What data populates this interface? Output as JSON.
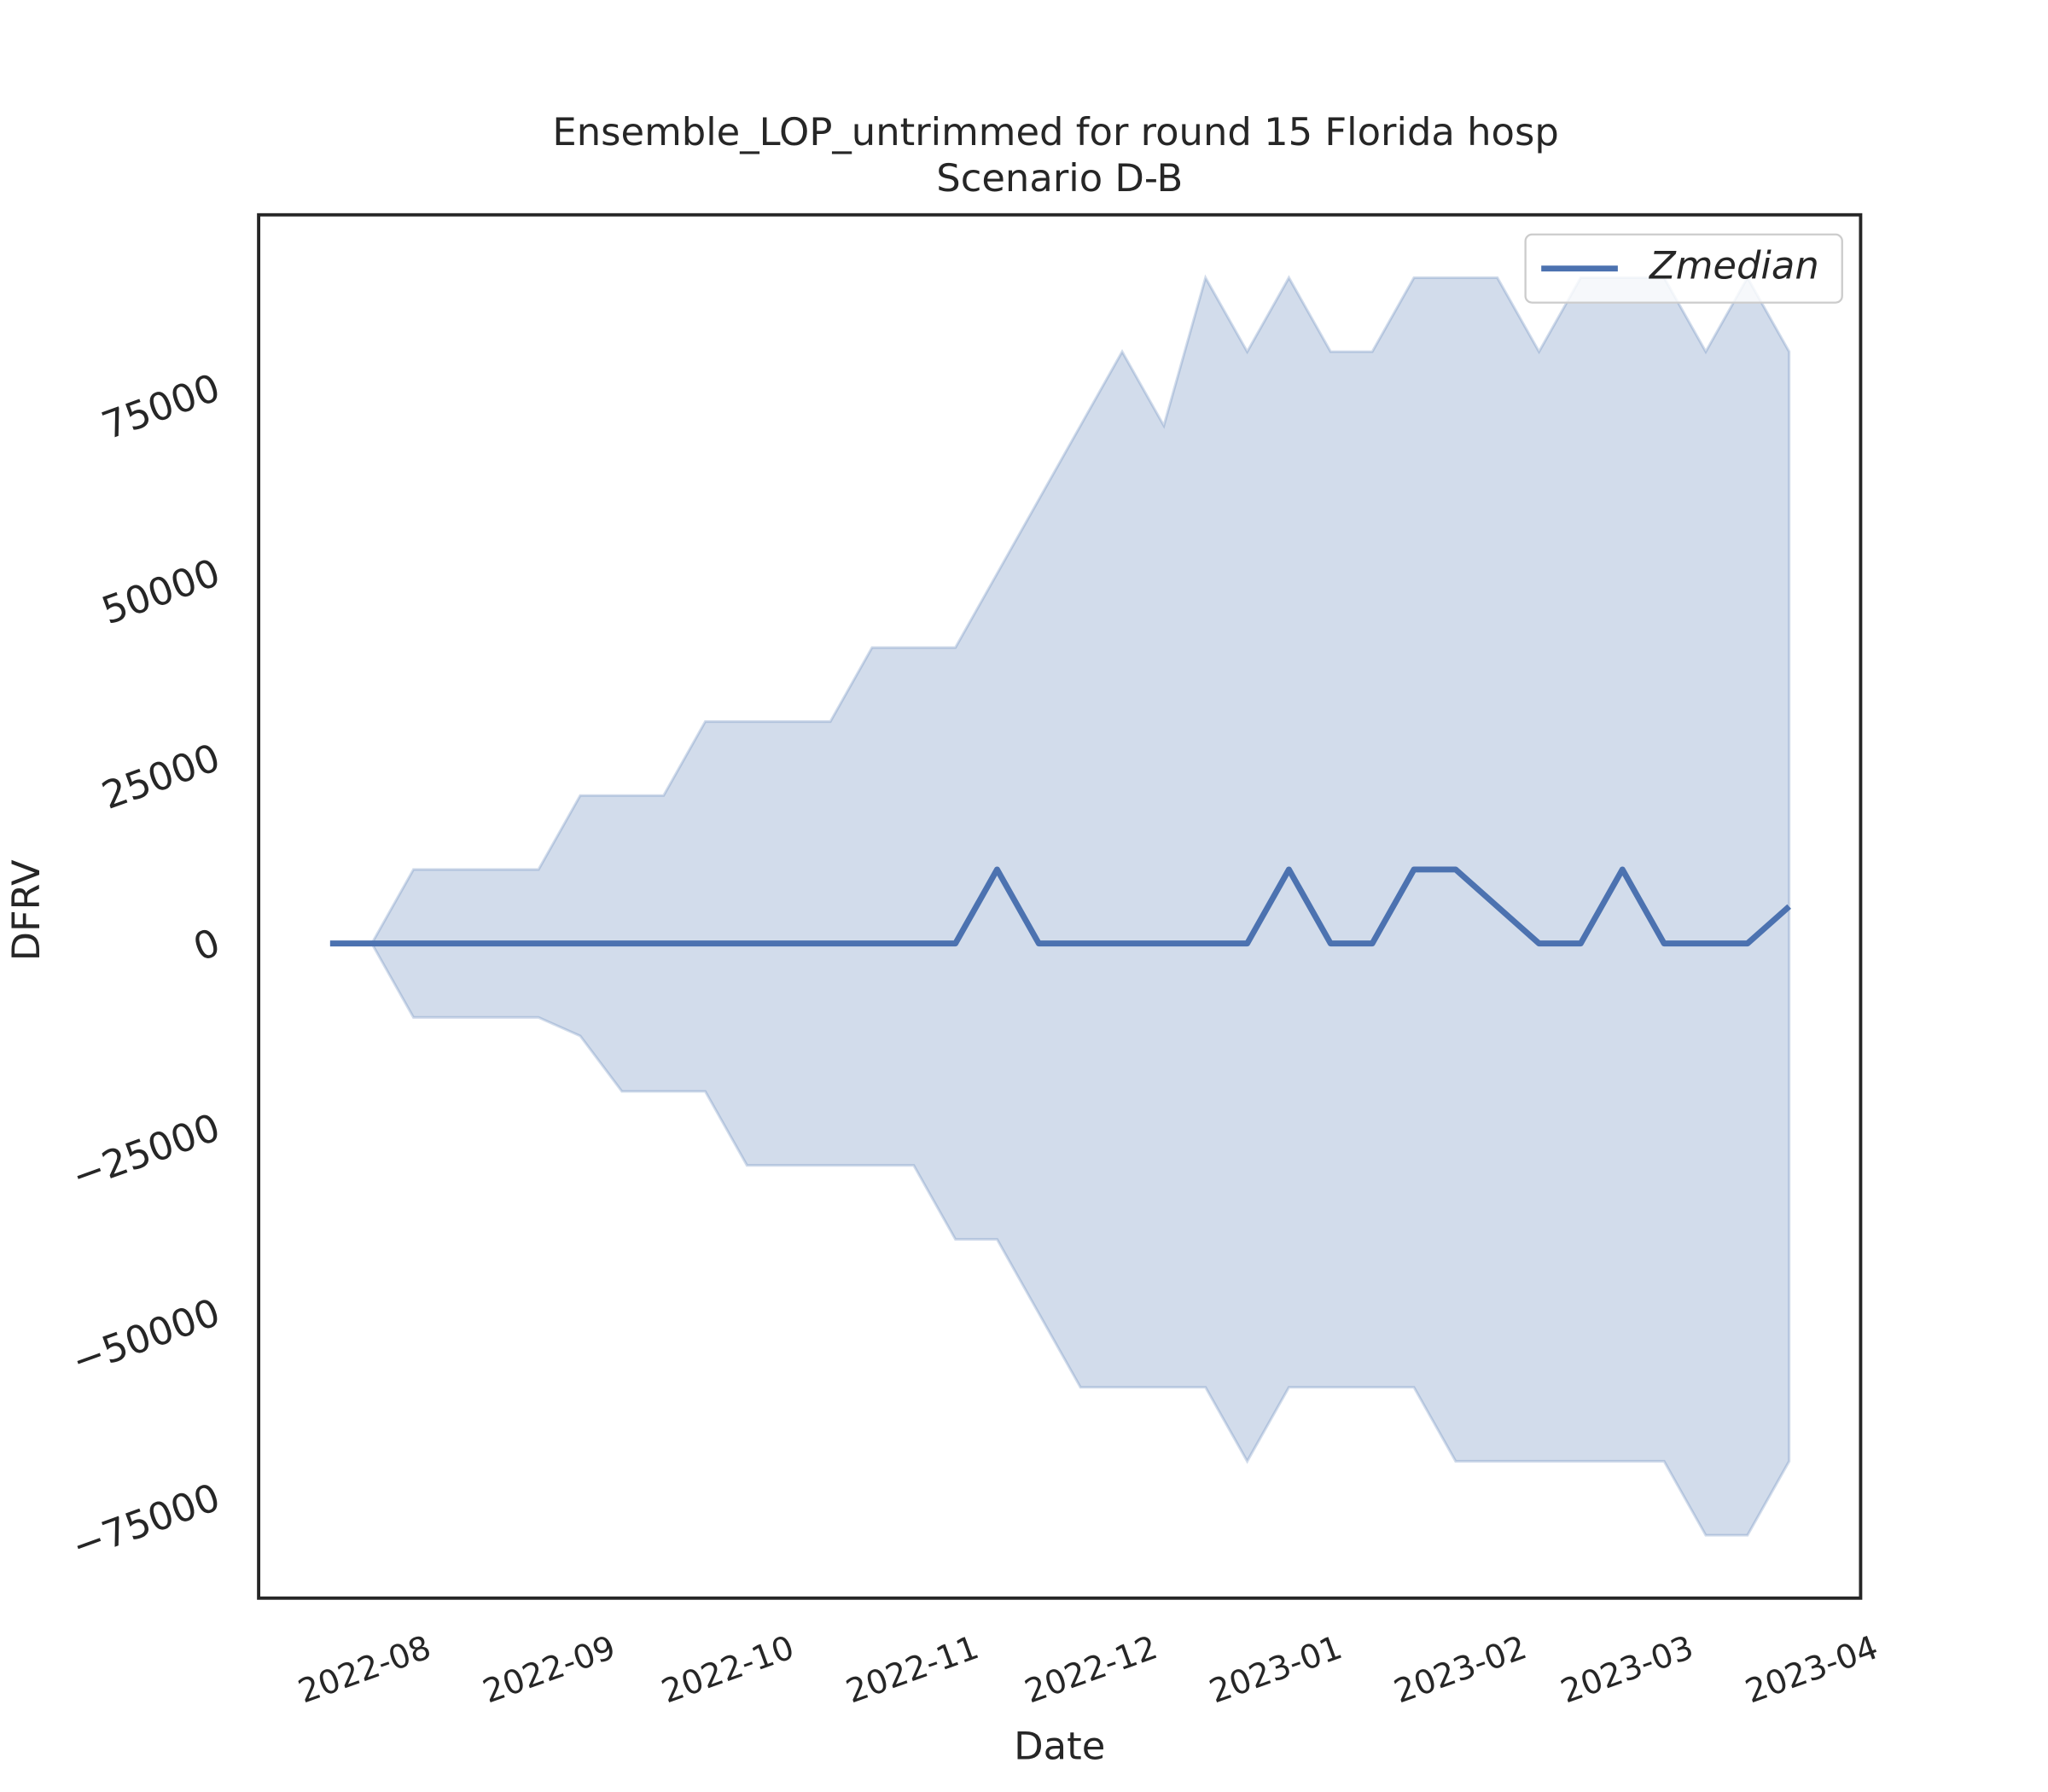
{
  "chart_data": {
    "type": "line",
    "title": "Ensemble_LOP_untrimmed for round 15 Florida hosp",
    "subtitle": "Scenario D-B",
    "x_label": "Date",
    "y_label": "DFRV",
    "x": [
      "2022-07-23",
      "2022-07-30",
      "2022-08-06",
      "2022-08-13",
      "2022-08-20",
      "2022-08-27",
      "2022-09-03",
      "2022-09-10",
      "2022-09-17",
      "2022-09-24",
      "2022-10-01",
      "2022-10-08",
      "2022-10-15",
      "2022-10-22",
      "2022-10-29",
      "2022-11-05",
      "2022-11-12",
      "2022-11-19",
      "2022-11-26",
      "2022-12-03",
      "2022-12-10",
      "2022-12-17",
      "2022-12-24",
      "2022-12-31",
      "2023-01-07",
      "2023-01-14",
      "2023-01-21",
      "2023-01-28",
      "2023-02-04",
      "2023-02-11",
      "2023-02-18",
      "2023-02-25",
      "2023-03-04",
      "2023-03-11",
      "2023-03-18",
      "2023-03-25"
    ],
    "series": [
      {
        "name": "Zmedian",
        "color": "#4c72b0",
        "values": [
          0,
          0,
          0,
          0,
          0,
          0,
          0,
          0,
          0,
          0,
          0,
          0,
          0,
          0,
          0,
          0,
          10000,
          0,
          0,
          0,
          0,
          0,
          0,
          10000,
          0,
          0,
          10000,
          10000,
          5000,
          0,
          0,
          10000,
          0,
          0,
          0,
          5000
        ],
        "upper": [
          0,
          0,
          10000,
          10000,
          10000,
          10000,
          20000,
          20000,
          20000,
          30000,
          30000,
          30000,
          30000,
          40000,
          40000,
          40000,
          50000,
          60000,
          70000,
          80000,
          70000,
          90000,
          80000,
          90000,
          80000,
          80000,
          90000,
          90000,
          90000,
          80000,
          90000,
          90000,
          90000,
          80000,
          90000,
          80000
        ],
        "lower": [
          0,
          0,
          -10000,
          -10000,
          -10000,
          -10000,
          -12500,
          -20000,
          -20000,
          -20000,
          -30000,
          -30000,
          -30000,
          -30000,
          -30000,
          -40000,
          -40000,
          -50000,
          -60000,
          -60000,
          -60000,
          -60000,
          -70000,
          -60000,
          -60000,
          -60000,
          -60000,
          -70000,
          -70000,
          -70000,
          -70000,
          -70000,
          -70000,
          -80000,
          -80000,
          -70000
        ]
      }
    ],
    "xlim": [
      "2022-07-11",
      "2023-04-06"
    ],
    "xticks": [
      {
        "value": "2022-08-01",
        "label": "2022-08"
      },
      {
        "value": "2022-09-01",
        "label": "2022-09"
      },
      {
        "value": "2022-10-01",
        "label": "2022-10"
      },
      {
        "value": "2022-11-01",
        "label": "2022-11"
      },
      {
        "value": "2022-12-01",
        "label": "2022-12"
      },
      {
        "value": "2023-01-01",
        "label": "2023-01"
      },
      {
        "value": "2023-02-01",
        "label": "2023-02"
      },
      {
        "value": "2023-03-01",
        "label": "2023-03"
      },
      {
        "value": "2023-04-01",
        "label": "2023-04"
      }
    ],
    "ylim": [
      -88500,
      98500
    ],
    "yticks": [
      {
        "value": -75000,
        "label": "−75000"
      },
      {
        "value": -50000,
        "label": "−50000"
      },
      {
        "value": -25000,
        "label": "−25000"
      },
      0,
      25000,
      50000,
      75000
    ],
    "grid": false,
    "legend": "upper right"
  }
}
